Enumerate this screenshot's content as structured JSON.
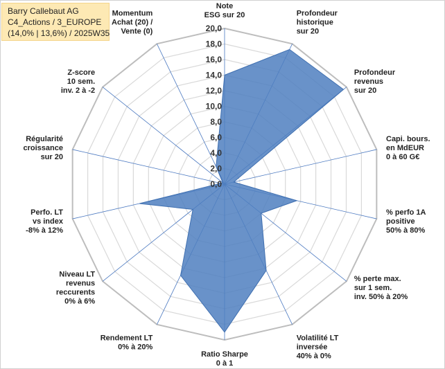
{
  "title": {
    "line1": "Barry Callebaut AG",
    "line2": "C4_Actions / 3_EUROPE",
    "line3": "(14,0% | 13,6%) / 2025W35"
  },
  "chart_data": {
    "type": "radar",
    "rmin": 0,
    "rmax": 20,
    "tick_labels": [
      "0,0",
      "2,0",
      "4,0",
      "6,0",
      "8,0",
      "10,0",
      "12,0",
      "14,0",
      "16,0",
      "18,0",
      "20,0"
    ],
    "series_color": "#4f7fbf",
    "axes": [
      {
        "label": [
          "Note",
          "ESG sur 20"
        ],
        "value": 14.0
      },
      {
        "label": [
          "Profondeur",
          "historique",
          "sur 20"
        ],
        "value": 19.2
      },
      {
        "label": [
          "Profondeur",
          "revenus",
          "sur 20"
        ],
        "value": 19.5
      },
      {
        "label": [
          "Capi. bours.",
          "en MdEUR",
          "0 à 60 G€"
        ],
        "value": 1.2
      },
      {
        "label": [
          "% perfo 1A",
          "positive",
          "50% à 80%"
        ],
        "value": 9.5
      },
      {
        "label": [
          "% perte max.",
          "sur 1 sem.",
          "inv. 50% à 20%"
        ],
        "value": 6.0
      },
      {
        "label": [
          "Volatilité LT",
          "inversée",
          "40% à 0%"
        ],
        "value": 12.3
      },
      {
        "label": [
          "Ratio Sharpe",
          "0 à 1"
        ],
        "value": 19.0
      },
      {
        "label": [
          "Rendement LT",
          "0% à 20%"
        ],
        "value": 13.0
      },
      {
        "label": [
          "Niveau LT",
          "revenus",
          "reccurents",
          "0% à 6%"
        ],
        "value": 5.2
      },
      {
        "label": [
          "Perfo. LT",
          "vs index",
          "-8% à 12%"
        ],
        "value": 11.2
      },
      {
        "label": [
          "Régularité",
          "croissance",
          "sur 20"
        ],
        "value": 0.5
      },
      {
        "label": [
          "Z-score",
          "10 sem.",
          "inv. 2 à -2"
        ],
        "value": 0.3
      },
      {
        "label": [
          "Momentum",
          "Achat (20) /",
          "Vente (0)"
        ],
        "value": 2.5
      }
    ]
  }
}
